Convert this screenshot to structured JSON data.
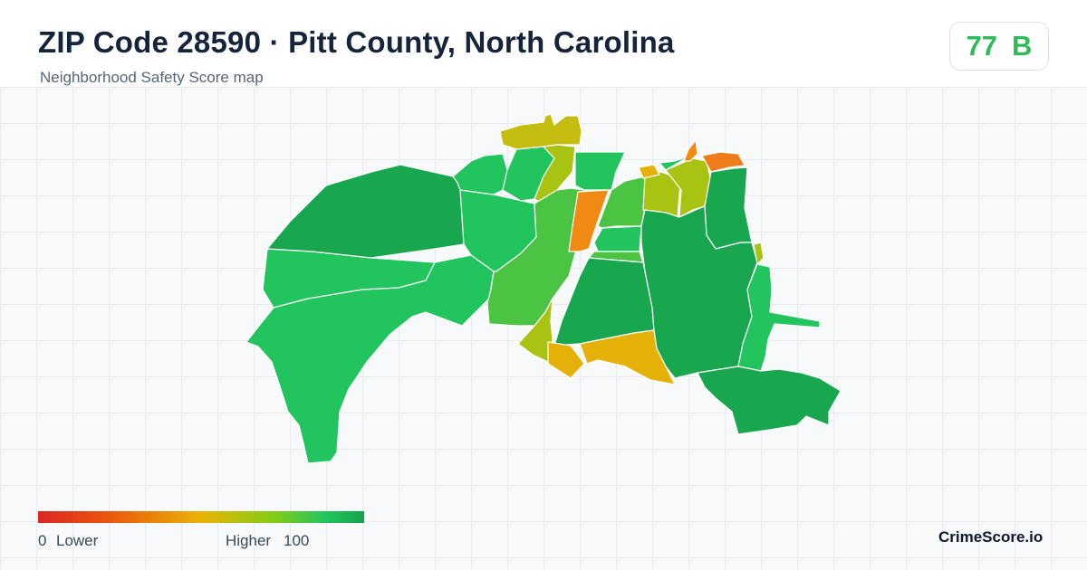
{
  "header": {
    "title": "ZIP Code 28590 · Pitt County, North Carolina",
    "subtitle": "Neighborhood Safety Score map"
  },
  "score_badge": {
    "score": "77",
    "grade": "B",
    "color": "#2dbc5a"
  },
  "legend": {
    "min_value": "0",
    "min_label": "Lower",
    "max_label": "Higher",
    "max_value": "100",
    "gradient_colors": [
      "#dc2626",
      "#ea580c",
      "#eab308",
      "#84cc16",
      "#22c55e",
      "#16a34a"
    ]
  },
  "brand": "CrimeScore.io",
  "regions_colors": {
    "dark_green": "#18a74f",
    "green": "#22c45d",
    "mid_green": "#4cc443",
    "lime": "#8ec41f",
    "yellow_green": "#a8c312",
    "olive": "#c4bd0f",
    "amber": "#e5b109",
    "orange": "#f08a12",
    "dark_orange": "#f07b1a"
  }
}
